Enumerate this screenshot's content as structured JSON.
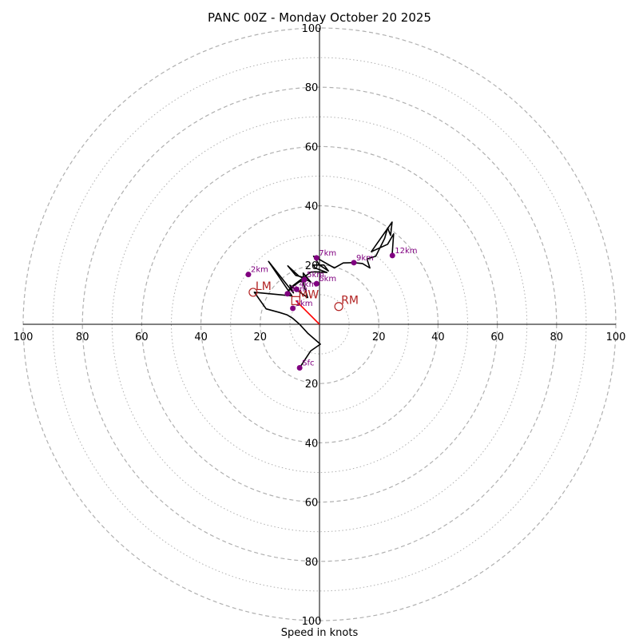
{
  "chart_data": {
    "type": "hodograph",
    "title": "PANC 00Z - Monday October 20 2025",
    "xlabel": "Speed in knots",
    "units": "knots",
    "xlim": [
      -100,
      100
    ],
    "ylim": [
      -100,
      100
    ],
    "major_rings": [
      20,
      40,
      60,
      80,
      100
    ],
    "minor_rings": [
      10,
      30,
      50,
      70,
      90
    ],
    "ticks": {
      "x": [
        {
          "value": -100,
          "label": "100"
        },
        {
          "value": -80,
          "label": "80"
        },
        {
          "value": -60,
          "label": "60"
        },
        {
          "value": -40,
          "label": "40"
        },
        {
          "value": -20,
          "label": "20"
        },
        {
          "value": 20,
          "label": "20"
        },
        {
          "value": 40,
          "label": "40"
        },
        {
          "value": 60,
          "label": "60"
        },
        {
          "value": 80,
          "label": "80"
        },
        {
          "value": 100,
          "label": "100"
        }
      ],
      "y": [
        {
          "value": 100,
          "label": "100"
        },
        {
          "value": 80,
          "label": "80"
        },
        {
          "value": 60,
          "label": "60"
        },
        {
          "value": 40,
          "label": "40"
        },
        {
          "value": 20,
          "label": "20"
        },
        {
          "value": -20,
          "label": "20"
        },
        {
          "value": -40,
          "label": "40"
        },
        {
          "value": -60,
          "label": "60"
        },
        {
          "value": -80,
          "label": "80"
        },
        {
          "value": -100,
          "label": "100"
        }
      ]
    },
    "wind_trace": [
      [
        -6.7,
        -14.7
      ],
      [
        -3,
        -9
      ],
      [
        0.3,
        -6.7
      ],
      [
        -4,
        -3
      ],
      [
        -6.7,
        0
      ],
      [
        -9,
        2
      ],
      [
        -11,
        3.2
      ],
      [
        -13.5,
        4
      ],
      [
        -18,
        5.2
      ],
      [
        -22,
        10.8
      ],
      [
        -9.3,
        9.6
      ],
      [
        -17.2,
        21.2
      ],
      [
        -8.8,
        10.6
      ],
      [
        -10,
        13.2
      ],
      [
        -4,
        9
      ],
      [
        -5.3,
        13.3
      ],
      [
        -5.5,
        17.3
      ],
      [
        -3,
        14.3
      ],
      [
        -7,
        16.3
      ],
      [
        -10.7,
        19.7
      ],
      [
        -8,
        16.5
      ],
      [
        -4,
        15.5
      ],
      [
        -7,
        14.2
      ],
      [
        -10,
        12
      ],
      [
        -11,
        10.5
      ],
      [
        -9,
        13
      ],
      [
        -6,
        15.3
      ],
      [
        -3,
        17.6
      ],
      [
        -1.5,
        17.7
      ],
      [
        2.5,
        17.5
      ],
      [
        -1.5,
        19
      ],
      [
        -2,
        20
      ],
      [
        1.5,
        20
      ],
      [
        3,
        18
      ],
      [
        0,
        20
      ],
      [
        -2,
        23
      ],
      [
        5,
        19
      ],
      [
        8,
        20.7
      ],
      [
        11.5,
        20.8
      ],
      [
        14.5,
        20.5
      ],
      [
        17,
        19
      ],
      [
        16,
        22
      ],
      [
        19,
        23
      ],
      [
        22,
        29
      ],
      [
        23,
        32.5
      ],
      [
        24,
        30
      ],
      [
        24.5,
        34.5
      ],
      [
        17.5,
        24.5
      ],
      [
        23,
        27
      ],
      [
        25,
        30.5
      ],
      [
        24.5,
        23.2
      ]
    ],
    "storm_motion_line": [
      [
        0,
        0
      ],
      [
        -8,
        8
      ]
    ],
    "height_markers": [
      {
        "label": "Sfc",
        "u": -6.7,
        "v": -14.7
      },
      {
        "label": "1km",
        "u": -9,
        "v": 5.4
      },
      {
        "label": "2km",
        "u": -24,
        "v": 16.8
      },
      {
        "label": "3km",
        "u": -10.8,
        "v": 10.3
      },
      {
        "label": "4km",
        "u": -7.7,
        "v": 11.8
      },
      {
        "label": "5km",
        "u": -5.1,
        "v": 15.1
      },
      {
        "label": "6km",
        "u": -1,
        "v": 13.7
      },
      {
        "label": "7km",
        "u": -1,
        "v": 22.4
      },
      {
        "label": "9km",
        "u": 11.6,
        "v": 20.8
      },
      {
        "label": "12km",
        "u": 24.6,
        "v": 23.2
      }
    ],
    "storm_motions": [
      {
        "label": "RM",
        "u": 6.5,
        "v": 6,
        "marker": "circle"
      },
      {
        "label": "LM",
        "u": -22.4,
        "v": 10.8,
        "marker": "circle"
      },
      {
        "label": "MW",
        "u": -8,
        "v": 8,
        "marker": "square"
      }
    ],
    "colors": {
      "trace": "#000000",
      "height_marker": "#800080",
      "storm_motion": "#b22222",
      "storm_motion_line": "#ff0000",
      "rings": "#b0b0b0"
    }
  }
}
